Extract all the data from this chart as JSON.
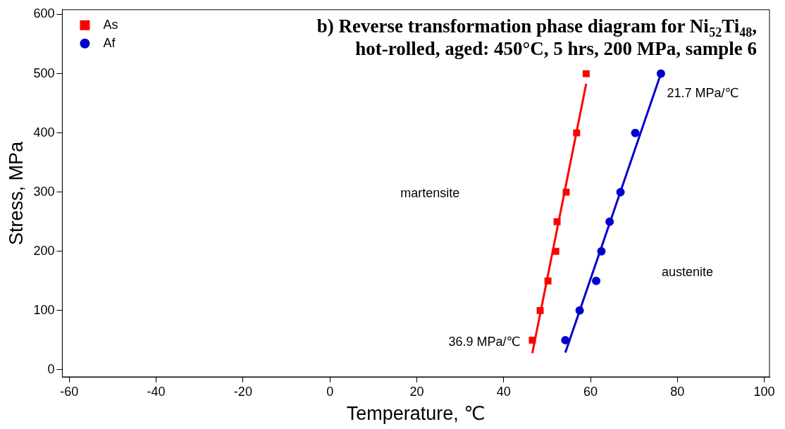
{
  "chart_data": {
    "type": "scatter",
    "title": "b) Reverse transformation phase diagram for Ni$_{52}$Ti$_{48}$,\nhot-rolled, aged: 450°C, 5 hrs, 200 MPa, sample 6",
    "xlabel": "Temperature, ℃",
    "ylabel": "Stress, MPa",
    "xlim": [
      -61.6,
      101.2
    ],
    "xticks": [
      -60,
      -40,
      -20,
      0,
      20,
      40,
      60,
      80,
      100
    ],
    "ylim": [
      -12,
      608
    ],
    "yticks": [
      0,
      100,
      200,
      300,
      400,
      500,
      600
    ],
    "series": [
      {
        "name": "As",
        "color": "#ff0000",
        "marker": "square",
        "x": [
          46.6,
          48.4,
          50.2,
          52.0,
          52.3,
          54.4,
          56.8,
          59.0
        ],
        "values": [
          50,
          100,
          150,
          200,
          250,
          300,
          400,
          500
        ]
      },
      {
        "name": "Af",
        "color": "#0000cc",
        "marker": "circle",
        "x": [
          54.2,
          57.5,
          61.3,
          62.5,
          64.4,
          66.9,
          70.3,
          76.2
        ],
        "values": [
          50,
          100,
          150,
          200,
          250,
          300,
          400,
          500
        ]
      },
      {
        "type": "line",
        "color": "#ff0000",
        "marker": "none",
        "x": [
          46.6,
          59.0
        ],
        "values": [
          28,
          483
        ]
      },
      {
        "type": "line",
        "color": "#0000cc",
        "marker": "none",
        "x": [
          54.2,
          76.2
        ],
        "values": [
          29,
          500
        ]
      }
    ],
    "annotations": [
      "martensite",
      "austenite",
      "36.9 MPa/℃",
      "21.7 MPa/℃"
    ],
    "legend": "top left",
    "grid": false
  }
}
